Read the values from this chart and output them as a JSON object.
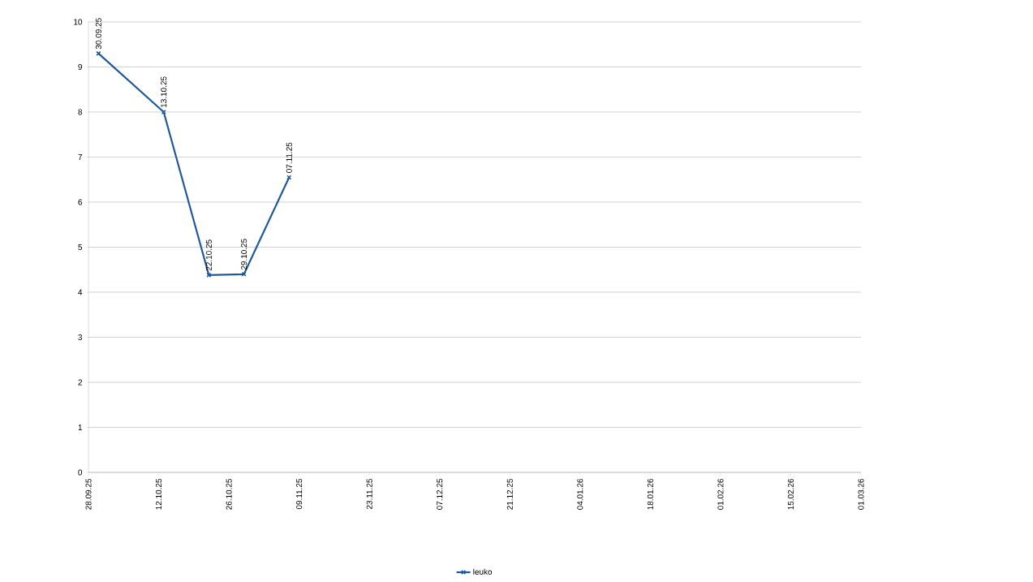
{
  "chart_data": {
    "type": "line",
    "x": [
      "2025-09-30",
      "2025-10-13",
      "2025-10-22",
      "2025-10-29",
      "2025-11-07"
    ],
    "series": [
      {
        "name": "leuko",
        "color": "#1f5a96",
        "values": [
          9.3,
          8.0,
          4.38,
          4.4,
          6.55
        ]
      }
    ],
    "annotations": [
      {
        "text": "30.09.25",
        "x": "2025-09-30",
        "y": 9.3
      },
      {
        "text": "13.10.25",
        "x": "2025-10-13",
        "y": 8.0
      },
      {
        "text": "22.10.25",
        "x": "2025-10-22",
        "y": 4.38
      },
      {
        "text": "29.10.25",
        "x": "2025-10-29",
        "y": 4.4
      },
      {
        "text": "07.11.25",
        "x": "2025-11-07",
        "y": 6.55
      }
    ],
    "xlim": [
      "2025-09-28",
      "2026-03-01"
    ],
    "xticks": [
      {
        "value": "2025-09-28",
        "label": "28.09.25"
      },
      {
        "value": "2025-10-12",
        "label": "12.10.25"
      },
      {
        "value": "2025-10-26",
        "label": "26.10.25"
      },
      {
        "value": "2025-11-09",
        "label": "09.11.25"
      },
      {
        "value": "2025-11-23",
        "label": "23.11.25"
      },
      {
        "value": "2025-12-07",
        "label": "07.12.25"
      },
      {
        "value": "2025-12-21",
        "label": "21.12.25"
      },
      {
        "value": "2026-01-04",
        "label": "04.01.26"
      },
      {
        "value": "2026-01-18",
        "label": "18.01.26"
      },
      {
        "value": "2026-02-01",
        "label": "01.02.26"
      },
      {
        "value": "2026-02-15",
        "label": "15.02.26"
      },
      {
        "value": "2026-03-01",
        "label": "01.03.26"
      }
    ],
    "ylim": [
      0,
      10
    ],
    "yticks": [
      0,
      1,
      2,
      3,
      4,
      5,
      6,
      7,
      8,
      9,
      10
    ],
    "grid": "y",
    "legend": "bottom",
    "marker": "cross",
    "line_style": "solid"
  }
}
